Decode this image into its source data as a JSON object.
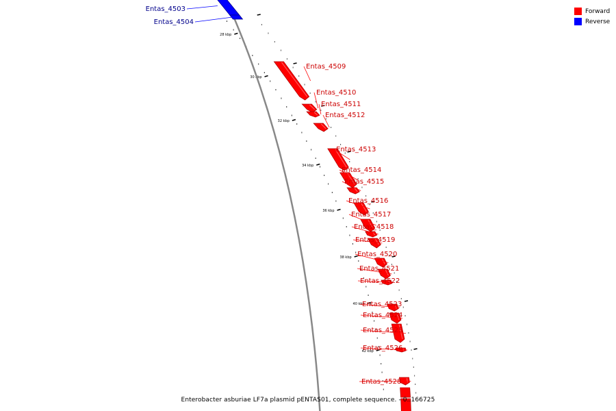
{
  "caption": "Enterobacter asburiae LF7a plasmid pENTAS01, complete sequence. - 0..166725",
  "legend": [
    {
      "label": "Forward",
      "color": "#ff0000"
    },
    {
      "label": "Reverse",
      "color": "#0000ff"
    }
  ],
  "scale_labels": [
    "28 kbp",
    "30 kbp",
    "32 kbp",
    "34 kbp",
    "36 kbp",
    "38 kbp",
    "40 kbp",
    "42 kbp"
  ],
  "genes": [
    {
      "name": "Entas_4503",
      "strand": "reverse"
    },
    {
      "name": "Entas_4504",
      "strand": "reverse"
    },
    {
      "name": "Entas_4509",
      "strand": "forward"
    },
    {
      "name": "Entas_4510",
      "strand": "forward"
    },
    {
      "name": "Entas_4511",
      "strand": "forward"
    },
    {
      "name": "Entas_4512",
      "strand": "forward"
    },
    {
      "name": "Entas_4513",
      "strand": "forward"
    },
    {
      "name": "Entas_4514",
      "strand": "forward"
    },
    {
      "name": "Entas_4515",
      "strand": "forward"
    },
    {
      "name": "Entas_4516",
      "strand": "forward"
    },
    {
      "name": "Entas_4517",
      "strand": "forward"
    },
    {
      "name": "Entas_4518",
      "strand": "forward"
    },
    {
      "name": "Entas_4519",
      "strand": "forward"
    },
    {
      "name": "Entas_4520",
      "strand": "forward"
    },
    {
      "name": "Entas_4521",
      "strand": "forward"
    },
    {
      "name": "Entas_4522",
      "strand": "forward"
    },
    {
      "name": "Entas_4523",
      "strand": "forward"
    },
    {
      "name": "Entas_4524",
      "strand": "forward"
    },
    {
      "name": "Entas_4525",
      "strand": "forward"
    },
    {
      "name": "Entas_4526",
      "strand": "forward"
    },
    {
      "name": "Entas_4528",
      "strand": "forward"
    }
  ]
}
